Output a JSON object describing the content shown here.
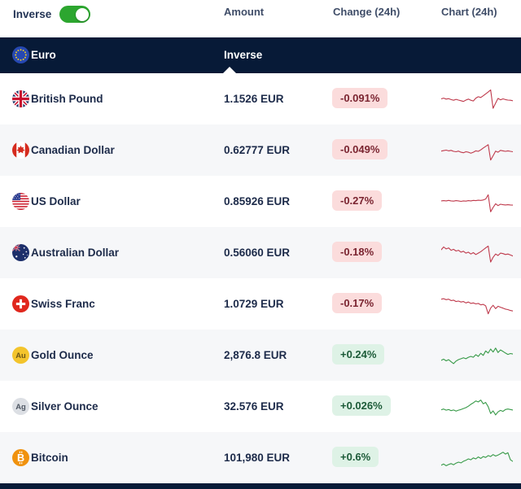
{
  "controls": {
    "inverse_label": "Inverse",
    "inverse_toggle_on": true
  },
  "columns": {
    "amount": "Amount",
    "change": "Change (24h)",
    "chart": "Chart (24h)"
  },
  "base": {
    "name": "Euro",
    "icon": "eu-flag",
    "amount_column_label": "Inverse"
  },
  "colors": {
    "navy": "#071a37",
    "toggle_green": "#2ca62f",
    "badge_down_bg": "#fbdcdc",
    "badge_down_text": "#7a2430",
    "badge_up_bg": "#def2e6",
    "badge_up_text": "#1c5b38",
    "spark_down": "#bf3a4c",
    "spark_up": "#379a48",
    "alt_row_bg": "#f6f7f9"
  },
  "rows": [
    {
      "name": "British Pound",
      "icon": "uk-flag",
      "amount": "1.1526 EUR",
      "change": "-0.091%",
      "direction": "down",
      "spark": [
        50,
        53,
        49,
        51,
        47,
        44,
        48,
        45,
        42,
        39,
        45,
        49,
        44,
        41,
        53,
        59,
        56,
        63,
        71,
        79,
        88,
        10,
        32,
        52,
        46,
        50,
        47,
        45,
        44,
        42
      ]
    },
    {
      "name": "Canadian Dollar",
      "icon": "canada-flag",
      "amount": "0.62777 EUR",
      "change": "-0.049%",
      "direction": "down",
      "spark": [
        46,
        48,
        50,
        47,
        49,
        45,
        43,
        46,
        41,
        39,
        43,
        41,
        37,
        41,
        47,
        45,
        51,
        59,
        66,
        73,
        8,
        26,
        46,
        41,
        49,
        47,
        45,
        47,
        45,
        43
      ]
    },
    {
      "name": "US Dollar",
      "icon": "us-flag",
      "amount": "0.85926 EUR",
      "change": "-0.27%",
      "direction": "down",
      "spark": [
        52,
        53,
        52,
        54,
        52,
        51,
        53,
        52,
        50,
        52,
        51,
        53,
        52,
        54,
        53,
        55,
        54,
        56,
        60,
        78,
        6,
        24,
        40,
        32,
        38,
        36,
        35,
        36,
        35,
        34
      ]
    },
    {
      "name": "Australian Dollar",
      "icon": "australia-flag",
      "amount": "0.56060 EUR",
      "change": "-0.18%",
      "direction": "down",
      "spark": [
        62,
        74,
        66,
        70,
        60,
        64,
        57,
        60,
        52,
        56,
        48,
        52,
        44,
        50,
        42,
        48,
        54,
        62,
        70,
        78,
        10,
        30,
        44,
        38,
        48,
        46,
        42,
        44,
        40,
        36
      ]
    },
    {
      "name": "Swiss Franc",
      "icon": "switzerland-flag",
      "amount": "1.0729 EUR",
      "change": "-0.17%",
      "direction": "down",
      "spark": [
        70,
        72,
        68,
        70,
        64,
        66,
        60,
        62,
        58,
        60,
        54,
        58,
        52,
        54,
        50,
        52,
        46,
        48,
        42,
        8,
        32,
        44,
        30,
        40,
        36,
        32,
        28,
        26,
        22,
        20
      ]
    },
    {
      "name": "Gold Ounce",
      "icon": "gold-au",
      "amount": "2,876.8 EUR",
      "change": "+0.24%",
      "direction": "up",
      "spark": [
        28,
        33,
        26,
        31,
        22,
        14,
        25,
        31,
        35,
        39,
        35,
        41,
        45,
        41,
        52,
        45,
        58,
        49,
        68,
        59,
        76,
        63,
        80,
        61,
        72,
        66,
        59,
        53,
        57,
        55
      ]
    },
    {
      "name": "Silver Ounce",
      "icon": "silver-ag",
      "amount": "32.576 EUR",
      "change": "+0.026%",
      "direction": "up",
      "spark": [
        36,
        39,
        34,
        37,
        32,
        35,
        30,
        34,
        37,
        41,
        45,
        51,
        59,
        65,
        73,
        69,
        77,
        61,
        67,
        49,
        20,
        31,
        14,
        27,
        33,
        29,
        37,
        39,
        37,
        35
      ]
    },
    {
      "name": "Bitcoin",
      "icon": "bitcoin",
      "amount": "101,980 EUR",
      "change": "+0.6%",
      "direction": "up",
      "spark": [
        18,
        23,
        16,
        21,
        25,
        20,
        27,
        31,
        28,
        35,
        39,
        45,
        41,
        49,
        45,
        53,
        47,
        55,
        51,
        59,
        55,
        63,
        57,
        61,
        67,
        73,
        65,
        71,
        41,
        34
      ]
    }
  ]
}
